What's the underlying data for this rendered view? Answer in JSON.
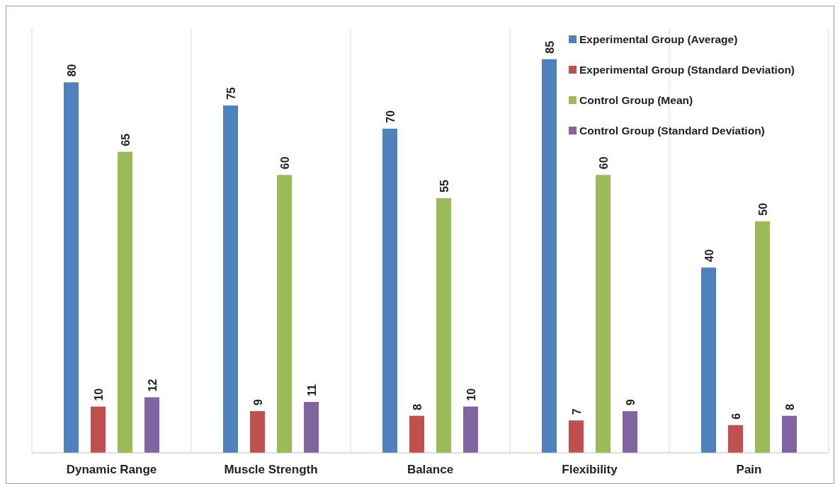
{
  "chart_data": {
    "type": "bar",
    "categories": [
      "Dynamic Range",
      "Muscle Strength",
      "Balance",
      "Flexibility",
      "Pain"
    ],
    "series": [
      {
        "name": "Experimental Group (Average)",
        "color": "#4f81bd",
        "values": [
          80,
          75,
          70,
          85,
          40
        ]
      },
      {
        "name": "Experimental Group (Standard Deviation)",
        "color": "#c0504d",
        "values": [
          10,
          9,
          8,
          7,
          6
        ]
      },
      {
        "name": "Control Group (Mean)",
        "color": "#9bbb59",
        "values": [
          65,
          60,
          55,
          60,
          50
        ]
      },
      {
        "name": "Control Group (Standard Deviation)",
        "color": "#8064a2",
        "values": [
          12,
          11,
          10,
          9,
          8
        ]
      }
    ],
    "data_labels": true,
    "grid": "x",
    "legend": "top right"
  }
}
